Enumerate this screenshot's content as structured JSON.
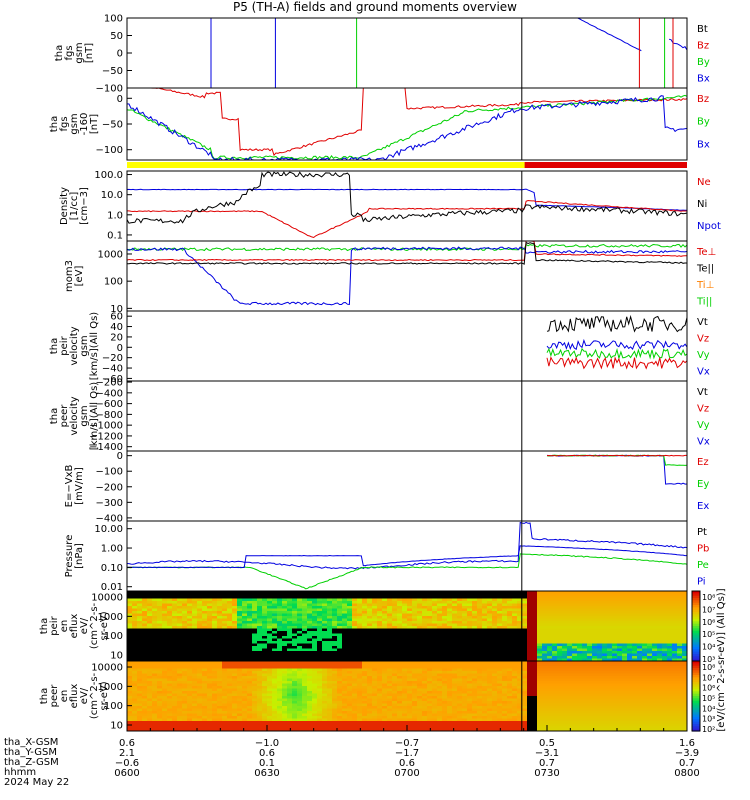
{
  "title": "P5 (TH-A) fields and ground moments overview",
  "colors": {
    "black": "#000000",
    "red": "#e00000",
    "green": "#00d000",
    "blue": "#0000e0",
    "yellow": "#ffff00",
    "orange": "#ff8000"
  },
  "chart_data": [
    {
      "type": "line",
      "ylabel": [
        "tha",
        "fgs",
        "gsm",
        "[nT]"
      ],
      "ylim": [
        -100,
        100
      ],
      "yticks": [
        "100",
        "50",
        "0",
        "−50",
        "−100"
      ],
      "legend": [
        {
          "name": "Bt",
          "color": "black"
        },
        {
          "name": "Bz",
          "color": "red"
        },
        {
          "name": "By",
          "color": "green"
        },
        {
          "name": "Bx",
          "color": "blue"
        }
      ]
    },
    {
      "type": "line",
      "ylabel": [
        "tha",
        "fgs",
        "gsm",
        "-160",
        "[nT]"
      ],
      "ylim": [
        -120,
        20
      ],
      "yticks": [
        "0",
        "−50",
        "−100"
      ],
      "legend": [
        {
          "name": "Bz",
          "color": "red"
        },
        {
          "name": "By",
          "color": "green"
        },
        {
          "name": "Bx",
          "color": "blue"
        }
      ]
    },
    {
      "type": "line",
      "ylabel": [
        "Density",
        "[1/cc]",
        "[cm−3]"
      ],
      "ylim": [
        0.05,
        150
      ],
      "log": true,
      "yticks": [
        "100.0",
        "10.0",
        "1.0",
        "0.1"
      ],
      "legend": [
        {
          "name": "Ne",
          "color": "red"
        },
        {
          "name": "Ni",
          "color": "black"
        },
        {
          "name": "Npot",
          "color": "blue"
        }
      ]
    },
    {
      "type": "line",
      "ylabel": [
        "mom3",
        "[eV]"
      ],
      "ylim": [
        8,
        3000
      ],
      "log": true,
      "yticks": [
        "1000",
        "100",
        "10"
      ],
      "legend": [
        {
          "name": "Te⊥",
          "color": "red"
        },
        {
          "name": "Te||",
          "color": "black"
        },
        {
          "name": "Ti⊥",
          "color": "orange"
        },
        {
          "name": "Ti||",
          "color": "green"
        }
      ]
    },
    {
      "type": "line",
      "ylabel": [
        "tha",
        "peir",
        "velocity",
        "gsm",
        "[km/s](All Qs)"
      ],
      "ylim": [
        -65,
        70
      ],
      "yticks": [
        "60",
        "40",
        "20",
        "0",
        "−20",
        "−40",
        "−60"
      ],
      "legend": [
        {
          "name": "Vt",
          "color": "black"
        },
        {
          "name": "Vz",
          "color": "red"
        },
        {
          "name": "Vy",
          "color": "green"
        },
        {
          "name": "Vx",
          "color": "blue"
        }
      ]
    },
    {
      "type": "line",
      "ylabel": [
        "tha",
        "peer",
        "velocity",
        "gsm",
        "[km/s](All Qs)"
      ],
      "ylim": [
        -1480,
        -180
      ],
      "yticks": [
        "−200",
        "−400",
        "−600",
        "−800",
        "−1000",
        "−1200",
        "−1400"
      ],
      "legend": [
        {
          "name": "Vt",
          "color": "black"
        },
        {
          "name": "Vz",
          "color": "red"
        },
        {
          "name": "Vy",
          "color": "green"
        },
        {
          "name": "Vx",
          "color": "blue"
        }
      ]
    },
    {
      "type": "line",
      "ylabel": [
        "E=−VxB",
        "[mV/m]"
      ],
      "ylim": [
        -420,
        30
      ],
      "yticks": [
        "0",
        "−100",
        "−200",
        "−300",
        "−400"
      ],
      "legend": [
        {
          "name": "Ez",
          "color": "red"
        },
        {
          "name": "Ey",
          "color": "green"
        },
        {
          "name": "Ex",
          "color": "blue"
        }
      ]
    },
    {
      "type": "line",
      "ylabel": [
        "Pressure",
        "[nPa]"
      ],
      "ylim": [
        0.006,
        25
      ],
      "log": true,
      "yticks": [
        "10.00",
        "1.00",
        "0.10",
        "0.01"
      ],
      "legend": [
        {
          "name": "Pt",
          "color": "black"
        },
        {
          "name": "Pb",
          "color": "red"
        },
        {
          "name": "Pe",
          "color": "green"
        },
        {
          "name": "Pi",
          "color": "blue"
        }
      ]
    },
    {
      "type": "heatmap",
      "ylabel": [
        "tha",
        "peir",
        "en",
        "eflux",
        "eV/",
        "(cm^2-s-",
        "sr-eV)"
      ],
      "yticks": [
        "10000",
        "1000",
        "100",
        "10"
      ]
    },
    {
      "type": "heatmap",
      "ylabel": [
        "tha",
        "peer",
        "en",
        "eflux",
        "eV/",
        "(cm^2-s-",
        "sr-eV)"
      ],
      "yticks": [
        "10000",
        "1000",
        "100",
        "10"
      ]
    }
  ],
  "colorbars": [
    {
      "ticks": [
        "10⁸",
        "10⁷",
        "10⁶",
        "10⁵",
        "10⁴",
        "10³"
      ]
    },
    {
      "ticks": [
        "10⁸",
        "10⁷",
        "10⁶",
        "10⁵",
        "10⁴",
        "10³",
        "10²"
      ]
    }
  ],
  "colorbar_label": "[eV/(cm^2-s-sr-eV)] (All Qs)]",
  "xaxis": {
    "rows": [
      {
        "name": "tha_X-GSM",
        "values": [
          "0.6",
          "−1.0",
          "−0.7",
          "0.5",
          "1.6"
        ]
      },
      {
        "name": "tha_Y-GSM",
        "values": [
          "2.1",
          "0.6",
          "−1.7",
          "−3.1",
          "−3.9"
        ]
      },
      {
        "name": "tha_Z-GSM",
        "values": [
          "−0.6",
          "0.1",
          "0.6",
          "0.7",
          "0.7"
        ]
      },
      {
        "name": "hhmm",
        "values": [
          "0600",
          "0630",
          "0700",
          "0730",
          "0800"
        ]
      }
    ],
    "date": "2024 May 22"
  }
}
